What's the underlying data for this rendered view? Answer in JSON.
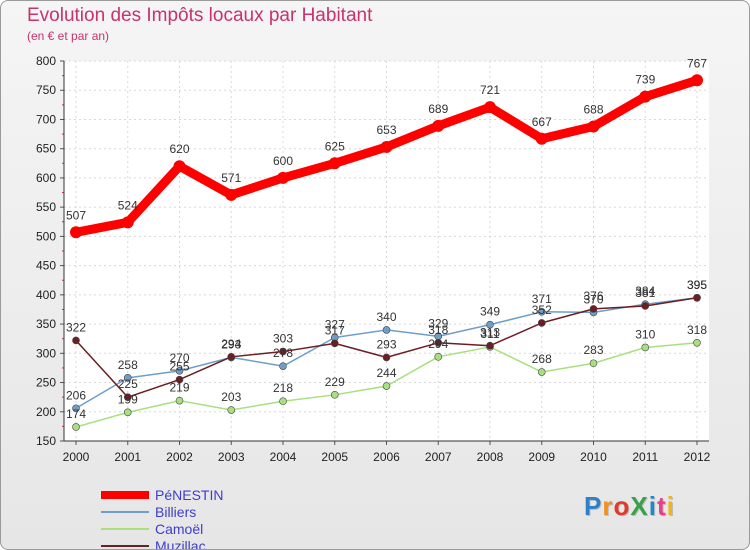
{
  "title": "Evolution des Impôts locaux par Habitant",
  "subtitle": "(en € et par an)",
  "logo": {
    "text": "ProXiti",
    "letters": [
      "P",
      "r",
      "o",
      "X",
      "i",
      "t",
      "i"
    ],
    "colors": [
      "#2f7fc8",
      "#f0901e",
      "#e03a2a",
      "#3aa04a",
      "#1e88c8",
      "#e83e8c",
      "#f0b41e"
    ]
  },
  "chart_data": {
    "type": "line",
    "x": [
      "2000",
      "2001",
      "2002",
      "2003",
      "2004",
      "2005",
      "2006",
      "2007",
      "2008",
      "2009",
      "2010",
      "2011",
      "2012"
    ],
    "ylim": [
      150,
      800
    ],
    "yticks": [
      "150",
      "200",
      "250",
      "300",
      "350",
      "400",
      "450",
      "500",
      "550",
      "600",
      "650",
      "700",
      "750",
      "800"
    ],
    "grid": true,
    "series": [
      {
        "name": "PéNESTIN",
        "color": "#ff0000",
        "values": [
          507,
          524,
          620,
          571,
          600,
          625,
          653,
          689,
          721,
          667,
          688,
          739,
          767
        ]
      },
      {
        "name": "Billiers",
        "color": "#6f9ec8",
        "values": [
          206,
          258,
          270,
          293,
          278,
          327,
          340,
          329,
          349,
          371,
          370,
          384,
          395
        ]
      },
      {
        "name": "Camoël",
        "color": "#a8e080",
        "values": [
          174,
          199,
          219,
          203,
          218,
          229,
          244,
          294,
          311,
          268,
          283,
          310,
          318
        ]
      },
      {
        "name": "Muzillac",
        "color": "#6b1e24",
        "values": [
          322,
          225,
          255,
          294,
          303,
          317,
          293,
          318,
          313,
          352,
          376,
          381,
          395
        ]
      }
    ]
  }
}
